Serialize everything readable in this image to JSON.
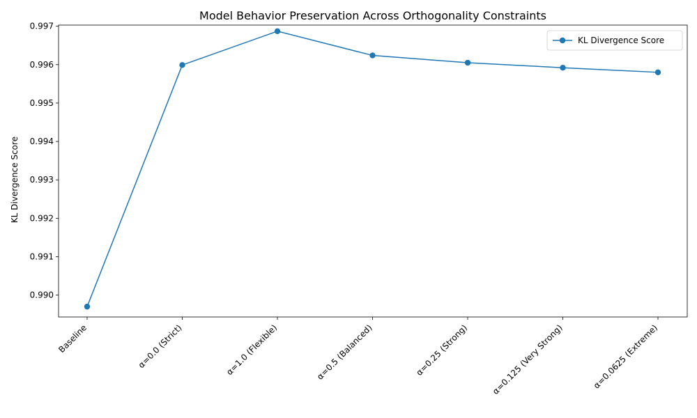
{
  "chart_data": {
    "type": "line",
    "title": "Model Behavior Preservation Across Orthogonality Constraints",
    "xlabel": "",
    "ylabel": "KL Divergence Score",
    "categories": [
      "Baseline",
      "α=0.0 (Strict)",
      "α=1.0 (Flexible)",
      "α=0.5 (Balanced)",
      "α=0.25 (Strong)",
      "α=0.125 (Very Strong)",
      "α=0.0625 (Extreme)"
    ],
    "series": [
      {
        "name": "KL Divergence Score",
        "values": [
          0.9897,
          0.99599,
          0.99687,
          0.99624,
          0.99605,
          0.99592,
          0.9958
        ],
        "color": "#1f77b4",
        "marker": "circle"
      }
    ],
    "ylim": [
      0.98943,
      0.99703
    ],
    "yticks": [
      "0.990",
      "0.991",
      "0.992",
      "0.993",
      "0.994",
      "0.995",
      "0.996",
      "0.997"
    ],
    "ytick_values": [
      0.99,
      0.991,
      0.992,
      0.993,
      0.994,
      0.995,
      0.996,
      0.997
    ],
    "grid": false,
    "legend": "top-right",
    "xtick_rotation": 45
  }
}
